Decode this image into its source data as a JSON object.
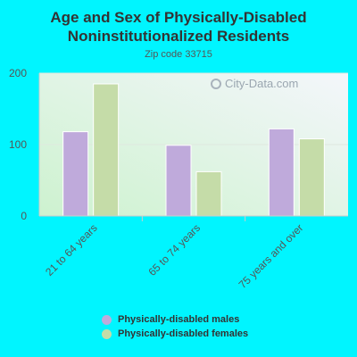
{
  "chart_data": {
    "type": "bar",
    "title": "Age and Sex of Physically-Disabled Noninstitutionalized Residents",
    "subtitle": "Zip code 33715",
    "categories": [
      "21 to 64 years",
      "65 to 74 years",
      "75 years and over"
    ],
    "series": [
      {
        "name": "Physically-disabled males",
        "values": [
          118,
          99,
          122
        ],
        "color": "#bfaadb"
      },
      {
        "name": "Physically-disabled females",
        "values": [
          185,
          62,
          108
        ],
        "color": "#c5dca8"
      }
    ],
    "yticks": [
      0,
      100,
      200
    ],
    "ylim": [
      0,
      200
    ],
    "grid": true,
    "legend_position": "bottom"
  },
  "watermark": "City-Data.com",
  "colors": {
    "background": "#00f5ff",
    "plot_gradient_top": "#f2f5f9",
    "plot_gradient_bottom": "#d4f3d6"
  }
}
